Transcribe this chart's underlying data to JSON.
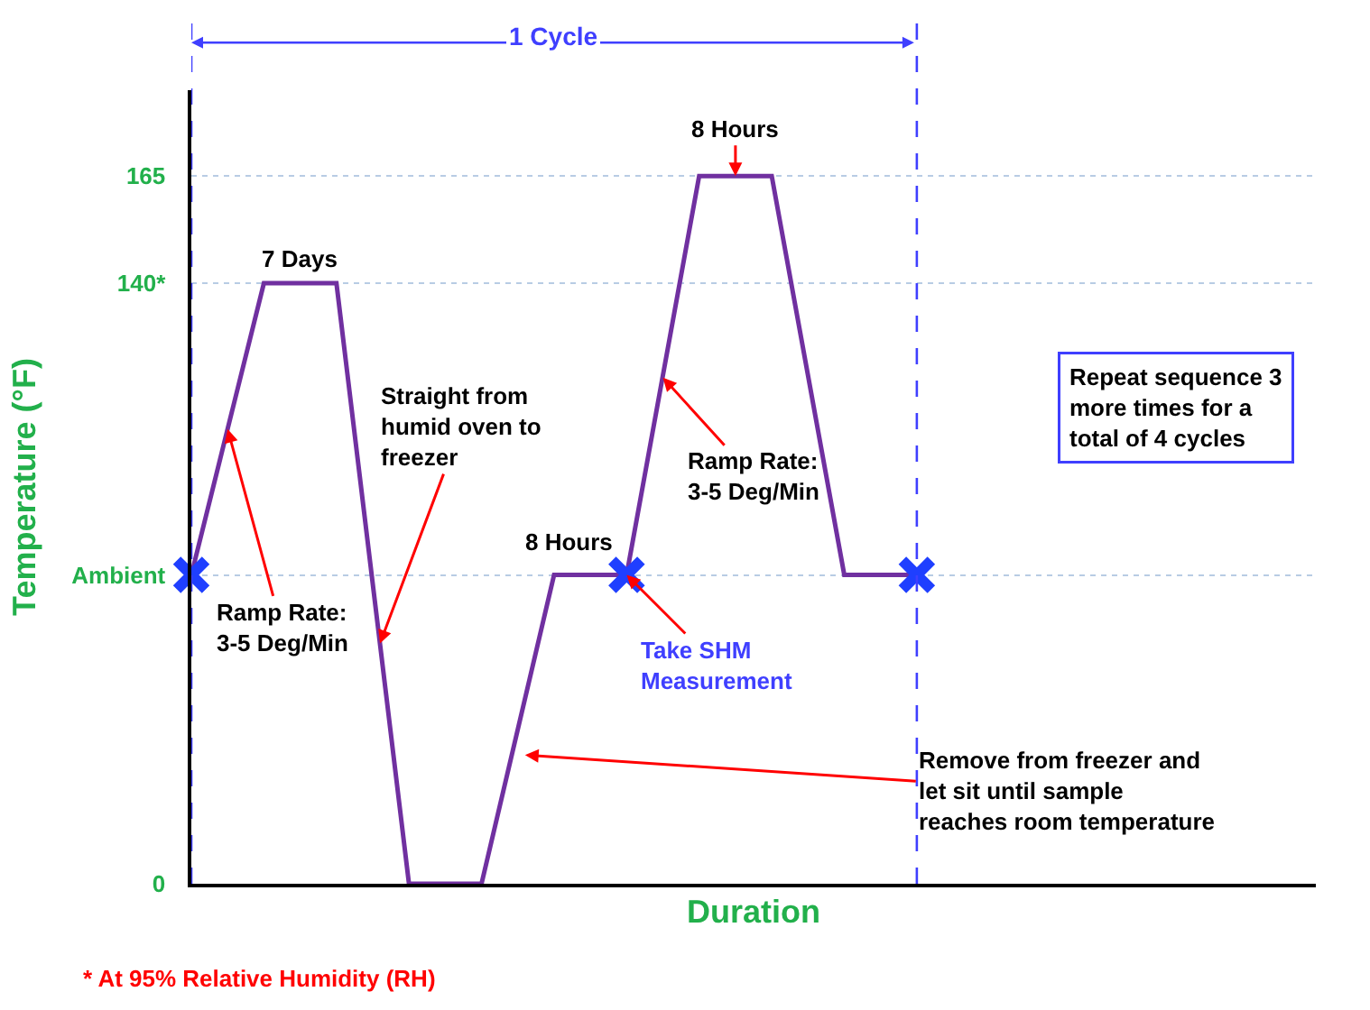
{
  "chart_data": {
    "type": "line",
    "xlabel": "Duration",
    "ylabel": "Temperature (°F)",
    "categories": [
      null,
      null,
      null,
      null,
      null,
      null,
      null,
      null,
      null,
      null,
      null
    ],
    "series": [
      {
        "color": "#7030a0",
        "values": [
          72,
          140,
          140,
          0,
          0,
          72,
          72,
          165,
          165,
          72,
          72
        ]
      },
      {
        "type": "scatter",
        "color": "#1f3fff",
        "values": [
          72,
          null,
          null,
          null,
          null,
          null,
          72,
          null,
          null,
          null,
          72
        ],
        "marker": "cross"
      }
    ],
    "ylim": [
      0,
      185
    ],
    "yticks": [
      0,
      {
        "value": 72,
        "label": "Ambient"
      },
      {
        "value": 140,
        "label": "140*"
      },
      165
    ],
    "tick_labels": "y",
    "grid": "y",
    "annotations": [
      "7 Days",
      "Straight from humid oven to freezer",
      "8 Hours",
      "8 Hours",
      "Ramp Rate: 3-5 Deg/Min",
      "Ramp Rate: 3-5 Deg/Min",
      "Take SHM Measurement",
      "Remove from freezer and let sit until sample reaches room temperature",
      "Repeat sequence 3 more times for a total of 4 cycles",
      "1 Cycle",
      "* At 95% Relative Humidity (RH)"
    ]
  }
}
